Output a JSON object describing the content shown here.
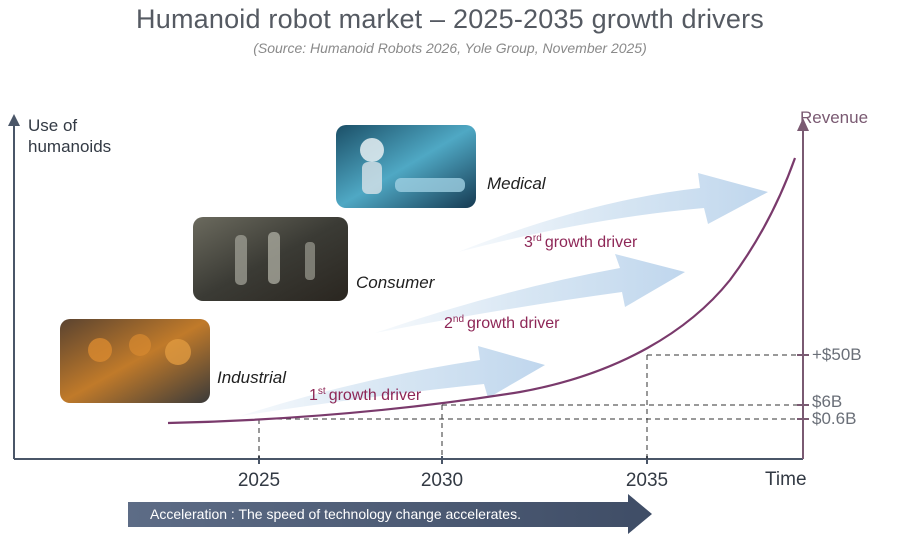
{
  "title": "Humanoid robot market – 2025-2035 growth drivers",
  "source": "(Source: Humanoid Robots 2026, Yole Group, November 2025)",
  "colors": {
    "axis": "#4a5668",
    "curve": "#7a3a6c",
    "arrow_fill": "#c9ddef",
    "driver_text": "#8e2757",
    "accel_fill": "#4f5f7a",
    "revenue_title": "#7a5a72"
  },
  "chart_data": {
    "type": "line",
    "title": "Humanoid robot market – 2025-2035 growth drivers",
    "y_axis_title_left": "Use of humanoids",
    "y_axis_title_right": "Revenue",
    "x_axis_title": "Time",
    "x_ticks": [
      "2025",
      "2030",
      "2035"
    ],
    "revenue_markers": [
      {
        "year": 2025,
        "label": "$0.6B"
      },
      {
        "year": 2030,
        "label": "$6B"
      },
      {
        "year": 2035,
        "label": "+$50B"
      }
    ],
    "series": [
      {
        "name": "Revenue",
        "shape": "exponential growth curve",
        "color": "#7a3a6c"
      }
    ],
    "segments": [
      {
        "name": "Industrial",
        "image": "factory-humanoid-robots-photo"
      },
      {
        "name": "Consumer",
        "image": "household-humanoid-robots-photo"
      },
      {
        "name": "Medical",
        "image": "hospital-humanoid-robot-photo"
      }
    ],
    "drivers": [
      {
        "ordinal": "1",
        "sup": "st",
        "text": "growth driver"
      },
      {
        "ordinal": "2",
        "sup": "nd",
        "text": "growth driver"
      },
      {
        "ordinal": "3",
        "sup": "rd",
        "text": "growth driver"
      }
    ],
    "acceleration_text": "Acceleration : The speed of technology change accelerates.",
    "grid": false,
    "legend": "none"
  }
}
